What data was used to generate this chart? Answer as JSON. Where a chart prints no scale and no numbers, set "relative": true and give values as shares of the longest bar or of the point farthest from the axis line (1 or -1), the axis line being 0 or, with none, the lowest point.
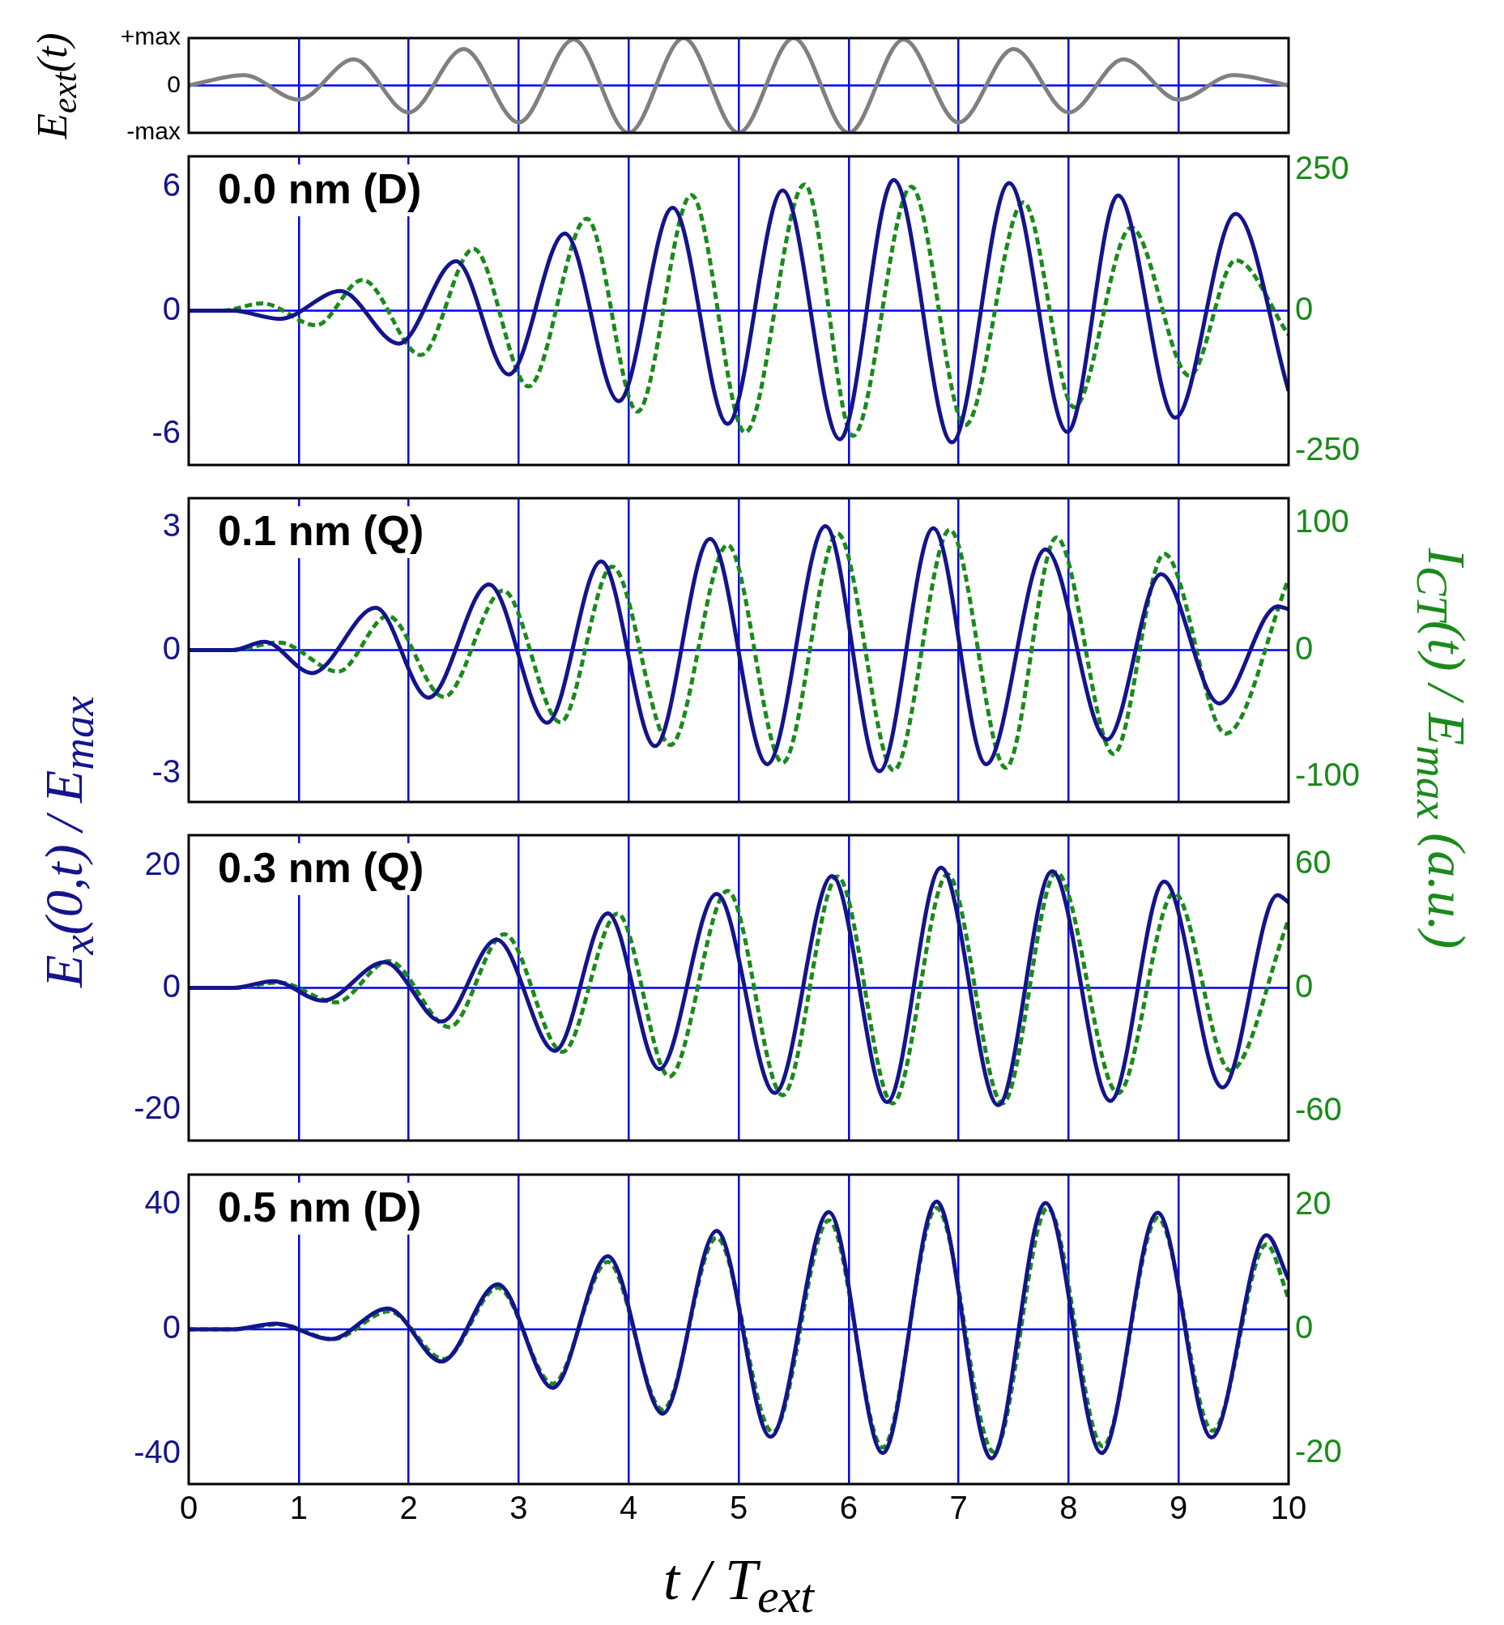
{
  "chart_data": [
    {
      "type": "line",
      "ylabel": "E$_{ext}$(t)",
      "relative": true,
      "annotations": [
        "+max",
        "0",
        "-max"
      ],
      "xlim": [
        0,
        10
      ],
      "xticks": [
        0,
        1,
        2,
        3,
        4,
        5,
        6,
        7,
        8,
        9,
        10
      ],
      "tick_labels": false,
      "grid": "x",
      "ref_lines": [
        {
          "axis": "y",
          "value": 0,
          "color": "#0000ff"
        }
      ],
      "series": [
        {
          "color": "#808080",
          "line_style": "solid",
          "x": [
            0,
            0.5,
            1,
            1.5,
            2,
            2.5,
            3,
            3.5,
            4,
            4.5,
            5,
            5.5,
            6,
            6.5,
            7,
            7.5,
            8,
            8.5,
            9,
            9.5,
            10
          ],
          "values": [
            0,
            0.22,
            -0.3,
            0.55,
            -0.57,
            0.77,
            -0.78,
            0.97,
            -1,
            1,
            -1,
            1,
            -1,
            0.97,
            -0.78,
            0.77,
            -0.57,
            0.55,
            -0.3,
            0.22,
            0
          ]
        }
      ]
    },
    {
      "type": "line",
      "annotations": [
        "0.0 nm (D)"
      ],
      "xlim": [
        0,
        10
      ],
      "xticks": [
        0,
        1,
        2,
        3,
        4,
        5,
        6,
        7,
        8,
        9,
        10
      ],
      "ylim": [
        -7.5,
        7.5
      ],
      "yticks": [
        -6,
        0,
        6
      ],
      "y2lim": [
        -275,
        275
      ],
      "y2ticks": [
        -250,
        0,
        250
      ],
      "tick_labels": "y",
      "grid": "x",
      "ref_lines": [
        {
          "axis": "y",
          "value": 0,
          "color": "#0000ff"
        }
      ],
      "series": [
        {
          "color": "#14148c",
          "line_style": "solid",
          "x": [
            0,
            0.4,
            0.83,
            1.38,
            1.91,
            2.43,
            2.91,
            3.42,
            3.91,
            4.4,
            4.9,
            5.4,
            5.92,
            6.41,
            6.94,
            7.46,
            7.99,
            8.45,
            8.97,
            9.52,
            10
          ],
          "values": [
            0,
            0,
            -0.4,
            0.95,
            -1.6,
            2.4,
            -3.1,
            3.75,
            -4.4,
            5.0,
            -5.5,
            5.85,
            -6.25,
            6.35,
            -6.4,
            6.2,
            -5.9,
            5.6,
            -5.2,
            4.7,
            -3.9
          ]
        },
        {
          "color": "#1a8a1a",
          "line_style": "dashed",
          "axis": "y2",
          "x": [
            0,
            0.3,
            0.67,
            1.16,
            1.58,
            2.11,
            2.59,
            3.09,
            3.62,
            4.08,
            4.57,
            5.06,
            5.6,
            6.04,
            6.57,
            7.06,
            7.59,
            8.05,
            8.57,
            9.1,
            9.52,
            10
          ],
          "values": [
            0,
            0,
            13,
            -26,
            55,
            -79,
            110,
            -135,
            164,
            -180,
            206,
            -217,
            225,
            -223,
            221,
            -204,
            193,
            -172,
            148,
            -116,
            90,
            -43
          ]
        }
      ]
    },
    {
      "type": "line",
      "annotations": [
        "0.1 nm (Q)"
      ],
      "ylabel": "E$_{x}$(0,t) / E$_{max}$",
      "y2label": "I$_{CT}$(t) / E$_{max}$ (a.u.)",
      "xlim": [
        0,
        10
      ],
      "xticks": [
        0,
        1,
        2,
        3,
        4,
        5,
        6,
        7,
        8,
        9,
        10
      ],
      "ylim": [
        -3.7,
        3.7
      ],
      "yticks": [
        -3,
        0,
        3
      ],
      "y2lim": [
        -120,
        120
      ],
      "y2ticks": [
        -100,
        0,
        100
      ],
      "tick_labels": "y",
      "grid": "x",
      "ref_lines": [
        {
          "axis": "y",
          "value": 0,
          "color": "#0000ff"
        }
      ],
      "series": [
        {
          "color": "#14148c",
          "line_style": "solid",
          "x": [
            0,
            0.4,
            0.69,
            1.12,
            1.7,
            2.18,
            2.73,
            3.26,
            3.75,
            4.24,
            4.74,
            5.26,
            5.79,
            6.28,
            6.77,
            7.25,
            7.79,
            8.35,
            8.84,
            9.37,
            9.9,
            10
          ],
          "values": [
            0,
            0,
            0.2,
            -0.56,
            1.03,
            -1.16,
            1.6,
            -1.77,
            2.16,
            -2.34,
            2.71,
            -2.78,
            3.02,
            -2.95,
            2.97,
            -2.78,
            2.45,
            -2.18,
            1.85,
            -1.3,
            1.06,
            1.0
          ]
        },
        {
          "color": "#1a8a1a",
          "line_style": "dashed",
          "axis": "y2",
          "x": [
            0,
            0.4,
            0.82,
            1.36,
            1.81,
            2.32,
            2.86,
            3.38,
            3.85,
            4.38,
            4.9,
            5.4,
            5.9,
            6.41,
            6.92,
            7.43,
            7.89,
            8.41,
            8.87,
            9.43,
            10
          ],
          "values": [
            0,
            0,
            6,
            -17,
            27,
            -37,
            47,
            -57,
            66,
            -75,
            83,
            -89,
            92,
            -95,
            95,
            -93,
            89,
            -82,
            76,
            -66,
            56
          ]
        }
      ]
    },
    {
      "type": "line",
      "annotations": [
        "0.3 nm (Q)"
      ],
      "xlim": [
        0,
        10
      ],
      "xticks": [
        0,
        1,
        2,
        3,
        4,
        5,
        6,
        7,
        8,
        9,
        10
      ],
      "ylim": [
        -25,
        25
      ],
      "yticks": [
        -20,
        0,
        20
      ],
      "y2lim": [
        -74,
        74
      ],
      "y2ticks": [
        -60,
        0,
        60
      ],
      "tick_labels": "y",
      "grid": "x",
      "ref_lines": [
        {
          "axis": "y",
          "value": 0,
          "color": "#0000ff"
        }
      ],
      "series": [
        {
          "color": "#14148c",
          "line_style": "solid",
          "x": [
            0,
            0.4,
            0.77,
            1.22,
            1.78,
            2.3,
            2.8,
            3.33,
            3.81,
            4.28,
            4.8,
            5.33,
            5.85,
            6.35,
            6.84,
            7.36,
            7.85,
            8.38,
            8.87,
            9.4,
            9.9,
            10
          ],
          "values": [
            0,
            0,
            1.1,
            -2.1,
            4.2,
            -5.5,
            7.9,
            -10.3,
            12.2,
            -13.3,
            15.4,
            -17.2,
            18.3,
            -18.7,
            19.7,
            -19.2,
            19.1,
            -18.5,
            17.4,
            -16.3,
            15.2,
            14
          ]
        },
        {
          "color": "#1a8a1a",
          "line_style": "dashed",
          "axis": "y2",
          "x": [
            0,
            0.4,
            0.82,
            1.34,
            1.82,
            2.37,
            2.87,
            3.4,
            3.9,
            4.37,
            4.9,
            5.4,
            5.9,
            6.4,
            6.9,
            7.4,
            7.89,
            8.45,
            8.96,
            9.47,
            10
          ],
          "values": [
            0,
            0,
            2.6,
            -7,
            13,
            -19,
            26,
            -31,
            36,
            -43,
            47,
            -52,
            54,
            -56,
            55,
            -56,
            56,
            -51,
            46,
            -40,
            33
          ]
        }
      ]
    },
    {
      "type": "line",
      "annotations": [
        "0.5 nm (D)"
      ],
      "xlabel": "t / T$_{ext}$",
      "xlim": [
        0,
        10
      ],
      "xticks": [
        0,
        1,
        2,
        3,
        4,
        5,
        6,
        7,
        8,
        9,
        10
      ],
      "ylim": [
        -49.5,
        49.5
      ],
      "yticks": [
        -40,
        0,
        40
      ],
      "y2lim": [
        -25,
        25
      ],
      "y2ticks": [
        -20,
        0,
        20
      ],
      "grid": "x",
      "ref_lines": [
        {
          "axis": "y",
          "value": 0,
          "color": "#0000ff"
        }
      ],
      "series": [
        {
          "color": "#14148c",
          "line_style": "solid",
          "x": [
            0,
            0.4,
            0.79,
            1.29,
            1.81,
            2.3,
            2.81,
            3.31,
            3.81,
            4.31,
            4.8,
            5.29,
            5.82,
            6.31,
            6.8,
            7.3,
            7.79,
            8.3,
            8.81,
            9.3,
            9.8,
            10
          ],
          "values": [
            0,
            0,
            1.8,
            -3.1,
            6.7,
            -10.3,
            14.4,
            -18.7,
            23.4,
            -27,
            31.5,
            -34.4,
            37.5,
            -39.6,
            40.9,
            -41.3,
            40.4,
            -39.6,
            37.3,
            -34.6,
            30.1,
            16
          ]
        },
        {
          "color": "#1a8a1a",
          "line_style": "dashed",
          "axis": "y2",
          "x": [
            0,
            0.4,
            0.82,
            1.31,
            1.82,
            2.32,
            2.81,
            3.31,
            3.81,
            4.31,
            4.8,
            5.31,
            5.82,
            6.31,
            6.8,
            7.32,
            7.81,
            8.31,
            8.81,
            9.31,
            9.8,
            10
          ],
          "values": [
            0,
            0,
            0.8,
            -1.6,
            2.9,
            -4.8,
            6.7,
            -8.8,
            10.9,
            -13,
            14.8,
            -16.6,
            17.6,
            -19.1,
            19.6,
            -19.8,
            19.6,
            -18.9,
            18,
            -16.4,
            13.7,
            5
          ]
        }
      ]
    }
  ]
}
